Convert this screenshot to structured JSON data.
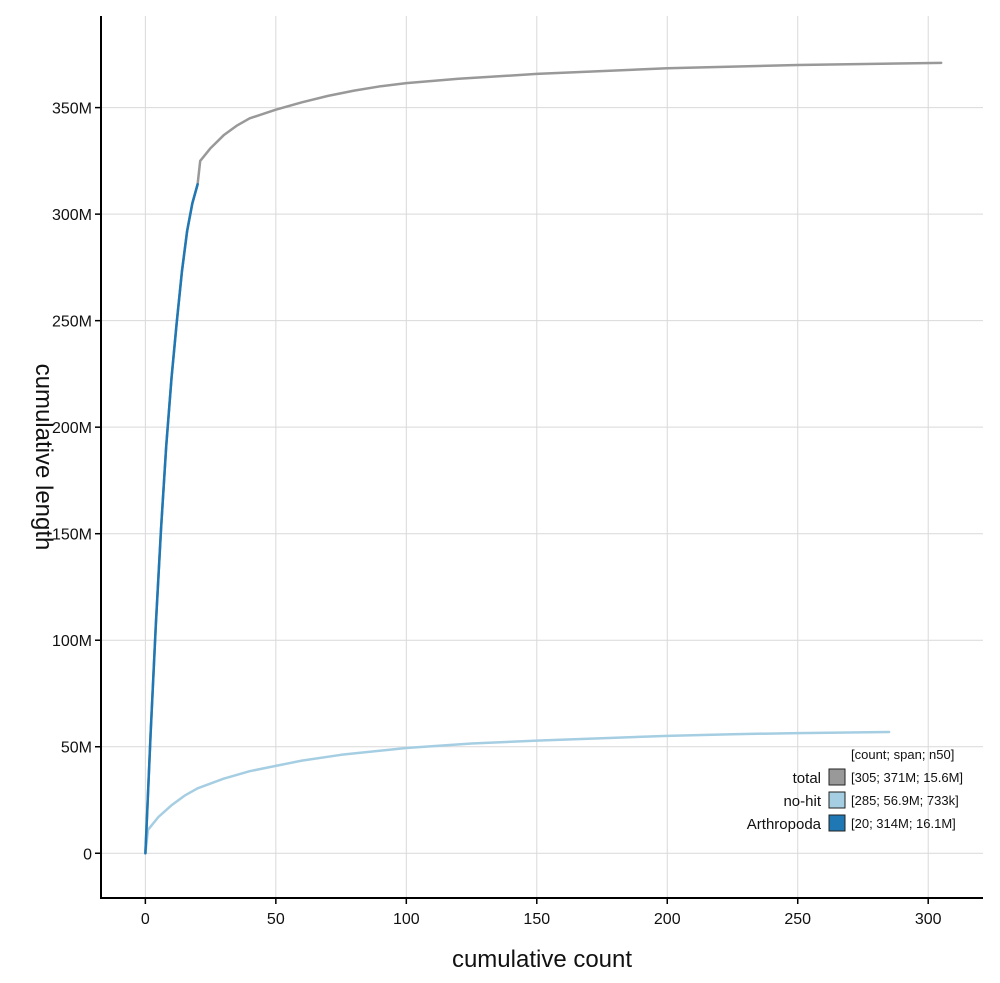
{
  "chart_data": {
    "type": "line",
    "xlabel": "cumulative count",
    "ylabel": "cumulative length",
    "xlim": [
      -17,
      321
    ],
    "ylim": [
      -21000000,
      393000000
    ],
    "x_ticks": [
      0,
      50,
      100,
      150,
      200,
      250,
      300
    ],
    "x_tick_labels": [
      "0",
      "50",
      "100",
      "150",
      "200",
      "250",
      "300"
    ],
    "y_ticks": [
      0,
      50000000,
      100000000,
      150000000,
      200000000,
      250000000,
      300000000,
      350000000
    ],
    "y_tick_labels": [
      "0",
      "50M",
      "100M",
      "150M",
      "200M",
      "250M",
      "300M",
      "350M"
    ],
    "grid": true,
    "legend": {
      "placement": "bottom-right",
      "header": "[count; span; n50]",
      "entries": [
        {
          "label": "total",
          "stats": "[305; 371M; 15.6M]",
          "color": "#999999"
        },
        {
          "label": "no-hit",
          "stats": "[285; 56.9M; 733k]",
          "color": "#a6cee3"
        },
        {
          "label": "Arthropoda",
          "stats": "[20; 314M; 16.1M]",
          "color": "#1f78b4"
        }
      ]
    },
    "series": [
      {
        "name": "total",
        "color": "#999999",
        "x": [
          0,
          1,
          2,
          4,
          6,
          8,
          10,
          12,
          14,
          16,
          18,
          20,
          21,
          25,
          30,
          35,
          40,
          50,
          60,
          70,
          80,
          90,
          100,
          120,
          150,
          200,
          250,
          305
        ],
        "y": [
          0,
          28000000,
          56000000,
          107000000,
          152000000,
          191000000,
          223000000,
          249000000,
          273000000,
          292000000,
          305000000,
          314000000,
          325000000,
          331000000,
          337000000,
          341500000,
          345000000,
          349000000,
          352500000,
          355500000,
          358000000,
          360000000,
          361500000,
          363500000,
          365800000,
          368500000,
          370000000,
          371000000
        ]
      },
      {
        "name": "no-hit",
        "color": "#a6cee3",
        "x": [
          0,
          1,
          5,
          10,
          15,
          20,
          30,
          40,
          50,
          60,
          75,
          100,
          125,
          150,
          175,
          200,
          225,
          250,
          285
        ],
        "y": [
          0,
          11000000,
          17000000,
          22500000,
          27000000,
          30500000,
          35000000,
          38500000,
          41000000,
          43500000,
          46200000,
          49400000,
          51500000,
          52900000,
          54000000,
          55100000,
          55900000,
          56400000,
          56900000
        ]
      },
      {
        "name": "Arthropoda",
        "color": "#1f78b4",
        "x": [
          0,
          1,
          2,
          4,
          6,
          8,
          10,
          12,
          14,
          16,
          18,
          20
        ],
        "y": [
          0,
          28000000,
          56000000,
          107000000,
          152000000,
          191000000,
          223000000,
          249000000,
          273000000,
          292000000,
          305000000,
          314000000
        ]
      }
    ]
  }
}
